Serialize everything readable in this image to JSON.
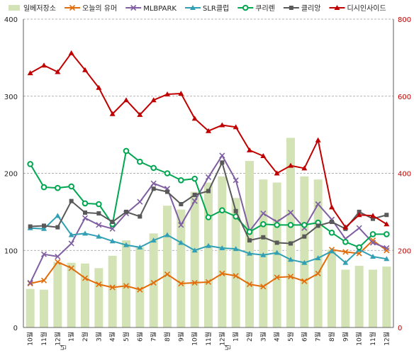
{
  "chart_data": {
    "type": "bar+line",
    "x": [
      "10월",
      "11월",
      "12월",
      "1월",
      "2월",
      "3월",
      "4월",
      "5월",
      "6월",
      "7월",
      "8월",
      "9월",
      "10월",
      "11월",
      "12월",
      "1월",
      "2월",
      "3월",
      "4월",
      "5월",
      "6월",
      "7월",
      "8월",
      "9월",
      "10월",
      "11월",
      "12월"
    ],
    "year_marks": [
      {
        "index": 3,
        "label": "년"
      },
      {
        "index": 15,
        "label": "년"
      }
    ],
    "y_left": {
      "min": 0,
      "max": 400,
      "ticks": [
        0,
        100,
        200,
        300,
        400
      ]
    },
    "y_right": {
      "min": 0,
      "max": 800,
      "ticks": [
        0,
        200,
        400,
        600,
        800
      ]
    },
    "grid": true,
    "legend_position": "top",
    "series": [
      {
        "name": "일베저장소",
        "kind": "bar",
        "axis": "left",
        "color": "#d4e3b5",
        "values": [
          50,
          49,
          85,
          84,
          83,
          77,
          93,
          113,
          104,
          122,
          158,
          153,
          176,
          188,
          196,
          168,
          216,
          192,
          188,
          246,
          196,
          192,
          101,
          75,
          80,
          75,
          79
        ]
      },
      {
        "name": "오늘의 유머",
        "kind": "line",
        "axis": "left",
        "color": "#e36c0a",
        "marker": "x",
        "values": [
          57,
          61,
          85,
          77,
          64,
          56,
          52,
          54,
          49,
          58,
          69,
          57,
          58,
          59,
          70,
          67,
          56,
          53,
          65,
          66,
          60,
          70,
          101,
          98,
          96,
          113,
          100
        ]
      },
      {
        "name": "MLBPARK",
        "kind": "line",
        "axis": "left",
        "color": "#7f5fa2",
        "marker": "x",
        "values": [
          58,
          95,
          92,
          109,
          142,
          133,
          128,
          148,
          163,
          187,
          180,
          133,
          164,
          195,
          223,
          191,
          125,
          148,
          137,
          149,
          129,
          160,
          140,
          115,
          129,
          110,
          103
        ]
      },
      {
        "name": "SLR클럽",
        "kind": "line",
        "axis": "left",
        "color": "#31a0b5",
        "marker": "triangle",
        "values": [
          129,
          128,
          145,
          120,
          122,
          118,
          112,
          107,
          104,
          113,
          120,
          110,
          100,
          106,
          103,
          102,
          96,
          94,
          97,
          88,
          84,
          90,
          99,
          84,
          101,
          92,
          89
        ]
      },
      {
        "name": "쿠리렌",
        "kind": "line",
        "axis": "left",
        "color": "#00a650",
        "marker": "circle",
        "values": [
          212,
          182,
          181,
          183,
          161,
          160,
          134,
          229,
          215,
          207,
          200,
          191,
          193,
          143,
          152,
          144,
          124,
          134,
          133,
          133,
          133,
          136,
          123,
          111,
          104,
          121,
          121
        ]
      },
      {
        "name": "클리앙",
        "kind": "line",
        "axis": "left",
        "color": "#595959",
        "marker": "square",
        "values": [
          131,
          132,
          130,
          164,
          149,
          148,
          137,
          150,
          144,
          180,
          176,
          160,
          172,
          177,
          214,
          151,
          113,
          117,
          110,
          109,
          118,
          132,
          137,
          128,
          150,
          141,
          146
        ]
      },
      {
        "name": "디시인사이드",
        "kind": "line",
        "axis": "right",
        "color": "#c00000",
        "marker": "triangle",
        "values": [
          660,
          680,
          663,
          712,
          668,
          622,
          554,
          590,
          552,
          590,
          605,
          607,
          542,
          510,
          525,
          520,
          460,
          445,
          400,
          420,
          413,
          486,
          312,
          260,
          292,
          290,
          268
        ]
      }
    ]
  }
}
